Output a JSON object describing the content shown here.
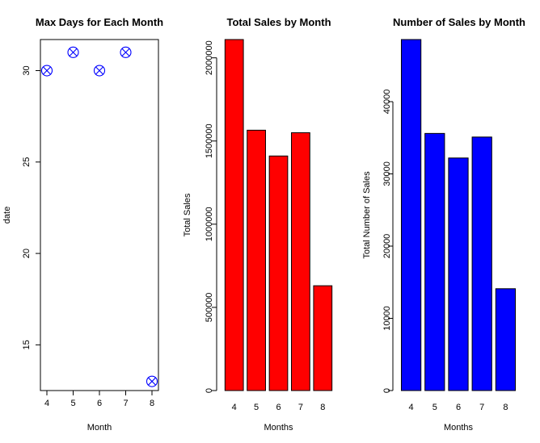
{
  "chart_data": [
    {
      "type": "scatter",
      "title": "Max Days for Each Month",
      "xlabel": "Month",
      "ylabel": "date",
      "x": [
        4,
        5,
        6,
        7,
        8
      ],
      "y": [
        30,
        31,
        30,
        31,
        13
      ],
      "xlim": [
        4,
        8
      ],
      "ylim": [
        12.5,
        31.7
      ],
      "xticks": [
        "4",
        "5",
        "6",
        "7",
        "8"
      ],
      "yticks": [
        "15",
        "20",
        "25",
        "30"
      ],
      "marker": "circle-cross",
      "color": "#0000ff",
      "grid": false
    },
    {
      "type": "bar",
      "title": "Total Sales by Month",
      "xlabel": "Months",
      "ylabel": "Total Sales",
      "categories": [
        "4",
        "5",
        "6",
        "7",
        "8"
      ],
      "values": [
        2110000,
        1565000,
        1410000,
        1550000,
        630000
      ],
      "ylim": [
        0,
        2110000
      ],
      "yticks": [
        "0",
        "500000",
        "1000000",
        "1500000",
        "2000000"
      ],
      "color": "#ff0000",
      "grid": false
    },
    {
      "type": "bar",
      "title": "Number of Sales by Month",
      "xlabel": "Months",
      "ylabel": "Total Number of Sales",
      "categories": [
        "4",
        "5",
        "6",
        "7",
        "8"
      ],
      "values": [
        48600,
        35600,
        32200,
        35100,
        14100
      ],
      "ylim": [
        0,
        48600
      ],
      "yticks": [
        "0",
        "10000",
        "20000",
        "30000",
        "40000"
      ],
      "color": "#0000ff",
      "grid": false
    }
  ]
}
